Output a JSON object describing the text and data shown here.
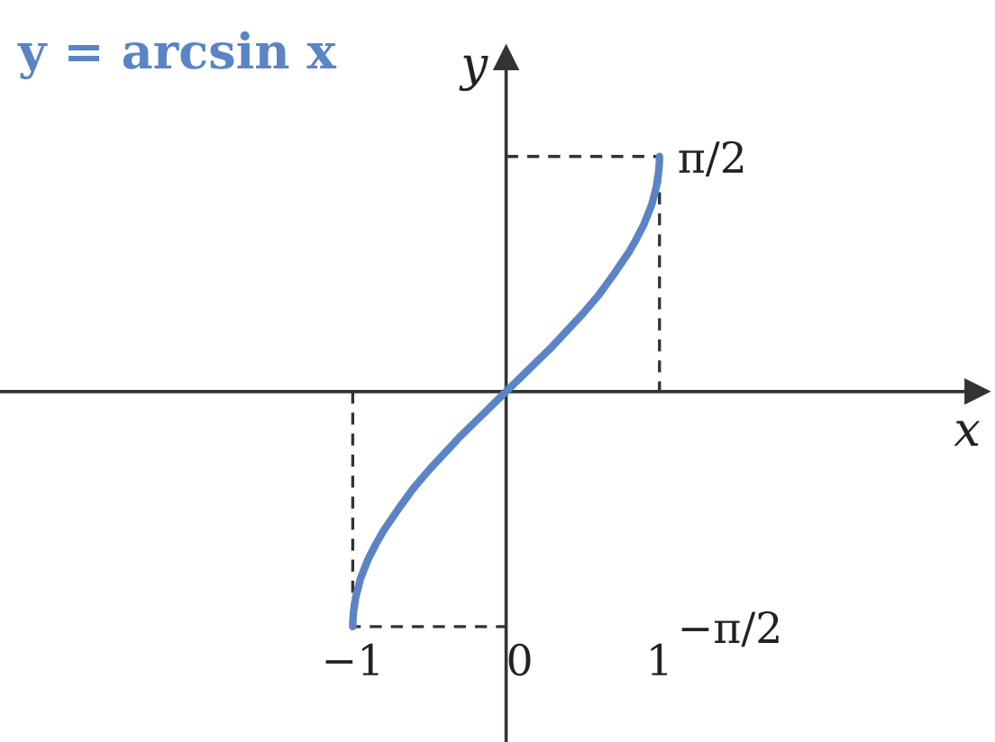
{
  "chart_data": {
    "type": "line",
    "title": "y = arcsin x",
    "xlabel": "x",
    "ylabel": "y",
    "xlim": [
      -3.3,
      3.07
    ],
    "ylim": [
      -2.34,
      2.23
    ],
    "xticks": [
      {
        "value": -1,
        "label": "−1"
      },
      0,
      1
    ],
    "yticks": [
      {
        "value": 1.57,
        "label": "π/2"
      },
      {
        "value": -1.57,
        "label": "−π/2"
      }
    ],
    "series": [
      {
        "color": "#5b84c6",
        "line_style": "solid",
        "x": [
          -1,
          -0.999,
          -0.995,
          -0.98,
          -0.95,
          -0.9,
          -0.85,
          -0.8,
          -0.7,
          -0.6,
          -0.5,
          -0.4,
          -0.3,
          -0.2,
          -0.1,
          0,
          0.1,
          0.2,
          0.3,
          0.4,
          0.5,
          0.6,
          0.7,
          0.8,
          0.85,
          0.9,
          0.95,
          0.98,
          0.995,
          0.999,
          1
        ],
        "values": [
          -1.57,
          -1.53,
          -1.47,
          -1.37,
          -1.25,
          -1.12,
          -1.02,
          -0.93,
          -0.78,
          -0.64,
          -0.52,
          -0.41,
          -0.3,
          -0.2,
          -0.1,
          0,
          0.1,
          0.2,
          0.3,
          0.41,
          0.52,
          0.64,
          0.78,
          0.93,
          1.02,
          1.12,
          1.25,
          1.37,
          1.47,
          1.53,
          1.57
        ]
      },
      {
        "color": "#333333",
        "line_style": "dashed",
        "x": [
          0,
          1,
          1
        ],
        "values": [
          1.57,
          1.57,
          0
        ]
      },
      {
        "color": "#333333",
        "line_style": "dashed",
        "x": [
          -1,
          -1,
          0
        ],
        "values": [
          0,
          -1.57,
          -1.57
        ]
      }
    ]
  }
}
